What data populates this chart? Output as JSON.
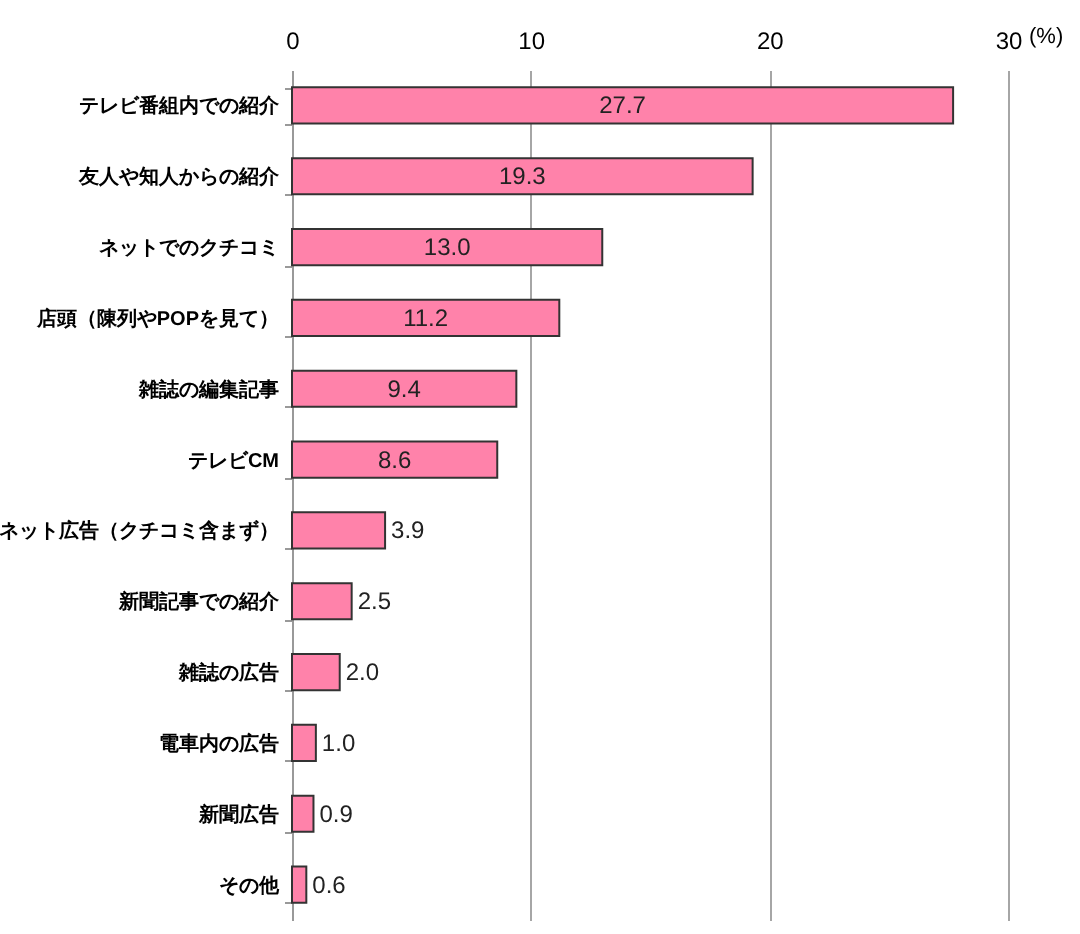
{
  "chart_data": {
    "type": "bar",
    "orientation": "horizontal",
    "xlabel": "(%)",
    "categories": [
      "テレビ番組内での紹介",
      "友人や知人からの紹介",
      "ネットでのクチコミ",
      "店頭（陳列やPOPを見て）",
      "雑誌の編集記事",
      "テレビCM",
      "ネット広告（クチコミ含まず）",
      "新聞記事での紹介",
      "雑誌の広告",
      "電車内の広告",
      "新聞広告",
      "その他"
    ],
    "values": [
      27.7,
      19.3,
      13.0,
      11.2,
      9.4,
      8.6,
      3.9,
      2.5,
      2.0,
      1.0,
      0.9,
      0.6
    ],
    "value_labels": [
      "27.7",
      "19.3",
      "13.0",
      "11.2",
      "9.4",
      "8.6",
      "3.9",
      "2.5",
      "2.0",
      "1.0",
      "0.9",
      "0.6"
    ],
    "color": "#ff82aa",
    "xlim": [
      0,
      30
    ],
    "xticks": [
      0,
      10,
      20,
      30
    ],
    "grid": "x"
  }
}
